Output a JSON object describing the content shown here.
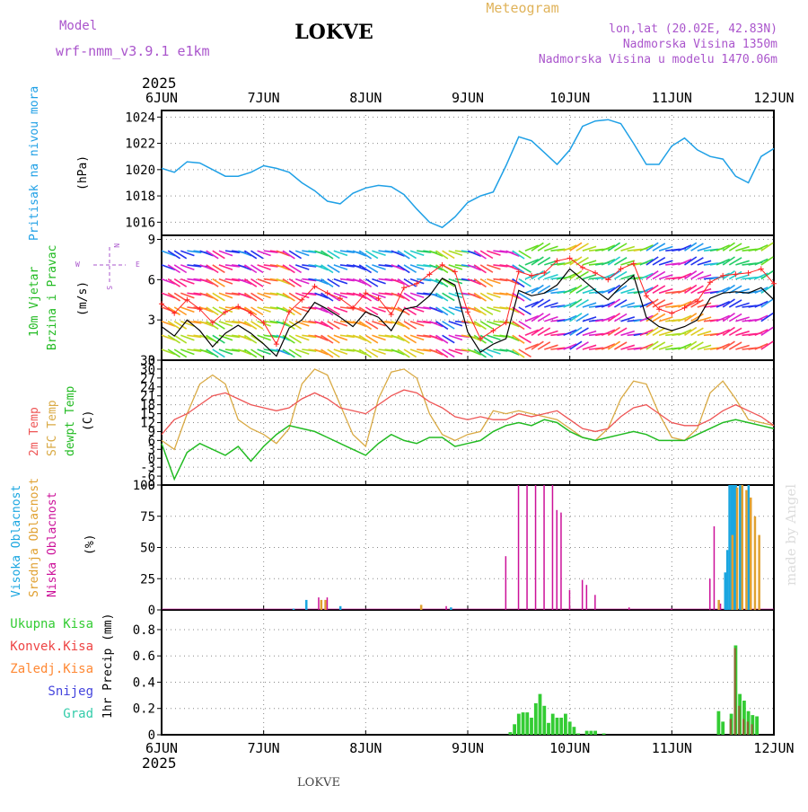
{
  "header": {
    "model_label": "Model",
    "model_name": "wrf-nmm_v3.9.1  e1km",
    "station": "LOKVE",
    "meteogram": "Meteogram",
    "lonlat": "lon,lat (20.02E, 42.83N)",
    "altitude": "Nadmorska Visina 1350m",
    "model_altitude": "Nadmorska Visina u modelu 1470.06m",
    "year": "2025",
    "footer_station": "LOKVE",
    "credit": "made by Angel"
  },
  "colors": {
    "pressure": "#1fa0e6",
    "temp2m": "#ee5555",
    "sfc_temp": "#d9aa44",
    "dewpoint": "#22bb22",
    "high_cloud": "#1aa6e0",
    "mid_cloud": "#e0a030",
    "low_cloud": "#cc1199",
    "total_precip": "#33cc33",
    "convective": "#ee4444",
    "freezing": "#ff8833",
    "snow": "#4444dd",
    "hail": "#33ccaa",
    "wind_speed": "#000000",
    "gust": "#ff2222"
  },
  "chart_data": [
    {
      "type": "line",
      "panel": "pressure",
      "ylabel_left": "Pritisak na nivou mora",
      "unit": "(hPa)",
      "ylim": [
        1015,
        1024.5
      ],
      "yticks": [
        "1016",
        "1018",
        "1020",
        "1022",
        "1024"
      ],
      "grid": true,
      "x_ticks": [
        "6JUN",
        "7JUN",
        "8JUN",
        "9JUN",
        "10JUN",
        "11JUN",
        "12JUN"
      ],
      "x": [
        0,
        3,
        6,
        9,
        12,
        15,
        18,
        21,
        24,
        27,
        30,
        33,
        36,
        39,
        42,
        45,
        48,
        51,
        54,
        57,
        60,
        63,
        66,
        69,
        72,
        75,
        78,
        81,
        84,
        87,
        90,
        93,
        96,
        99,
        102,
        105,
        108,
        111,
        114,
        117,
        120,
        123,
        126,
        129,
        132,
        135,
        138,
        141,
        144
      ],
      "series": [
        {
          "values": [
            1020.1,
            1019.8,
            1020.6,
            1020.5,
            1020.0,
            1019.5,
            1019.5,
            1019.8,
            1020.3,
            1020.1,
            1019.8,
            1019.0,
            1018.4,
            1017.6,
            1017.4,
            1018.2,
            1018.6,
            1018.8,
            1018.7,
            1018.1,
            1017.0,
            1016.0,
            1015.6,
            1016.4,
            1017.5,
            1018.0,
            1018.3,
            1020.3,
            1022.5,
            1022.2,
            1021.3,
            1020.4,
            1021.5,
            1023.3,
            1023.7,
            1023.8,
            1023.5,
            1022.0,
            1020.4,
            1020.4,
            1021.8,
            1022.4,
            1021.5,
            1021.0,
            1020.8,
            1019.5,
            1019.0,
            1021.0,
            1021.6
          ]
        }
      ]
    },
    {
      "type": "line",
      "panel": "wind",
      "ylabel_left": [
        "10m Vjetar",
        "Brzina i Pravac"
      ],
      "unit": "(m/s)",
      "compass": [
        "N",
        "W",
        "E",
        "S"
      ],
      "ylim": [
        0,
        9.3
      ],
      "yticks": [
        "0",
        "3",
        "6",
        "9"
      ],
      "grid": true,
      "x": [
        0,
        3,
        6,
        9,
        12,
        15,
        18,
        21,
        24,
        27,
        30,
        33,
        36,
        39,
        42,
        45,
        48,
        51,
        54,
        57,
        60,
        63,
        66,
        69,
        72,
        75,
        78,
        81,
        84,
        87,
        90,
        93,
        96,
        99,
        102,
        105,
        108,
        111,
        114,
        117,
        120,
        123,
        126,
        129,
        132,
        135,
        138,
        141,
        144
      ],
      "series": [
        {
          "name": "speed",
          "values": [
            2.5,
            1.8,
            3.0,
            2.2,
            1.0,
            2.0,
            2.6,
            2.0,
            1.2,
            0.3,
            2.4,
            3.0,
            4.3,
            3.8,
            3.2,
            2.5,
            3.6,
            3.2,
            2.2,
            3.8,
            4.0,
            4.8,
            6.1,
            5.6,
            2.1,
            0.6,
            1.2,
            1.6,
            5.2,
            4.8,
            5.0,
            5.6,
            6.8,
            6.0,
            5.2,
            4.5,
            5.5,
            6.3,
            3.2,
            2.5,
            2.2,
            2.5,
            3.0,
            4.6,
            5.0,
            5.1,
            5.0,
            5.4,
            4.5
          ]
        },
        {
          "name": "gust",
          "values": [
            4.2,
            3.5,
            4.5,
            3.8,
            2.8,
            3.6,
            4.0,
            3.5,
            2.8,
            1.2,
            3.6,
            4.5,
            5.5,
            5.0,
            4.6,
            3.9,
            5.0,
            4.6,
            3.4,
            5.4,
            5.7,
            6.4,
            7.1,
            6.6,
            3.6,
            1.6,
            2.2,
            2.8,
            6.6,
            6.3,
            6.5,
            7.4,
            7.6,
            6.9,
            6.5,
            6.0,
            6.8,
            7.2,
            4.8,
            3.8,
            3.5,
            3.9,
            4.4,
            5.8,
            6.3,
            6.4,
            6.5,
            6.8,
            5.7
          ]
        }
      ]
    },
    {
      "type": "line",
      "panel": "temperature",
      "ylabel_left": [
        "2m Temp",
        "SFC Temp",
        "dewpt Temp"
      ],
      "unit": "(C)",
      "ylim": [
        -9,
        33
      ],
      "yticks": [
        "-9",
        "-6",
        "-3",
        "0",
        "3",
        "6",
        "9",
        "12",
        "15",
        "18",
        "21",
        "24",
        "27",
        "30",
        "33"
      ],
      "grid": true,
      "x": [
        0,
        3,
        6,
        9,
        12,
        15,
        18,
        21,
        24,
        27,
        30,
        33,
        36,
        39,
        42,
        45,
        48,
        51,
        54,
        57,
        60,
        63,
        66,
        69,
        72,
        75,
        78,
        81,
        84,
        87,
        90,
        93,
        96,
        99,
        102,
        105,
        108,
        111,
        114,
        117,
        120,
        123,
        126,
        129,
        132,
        135,
        138,
        141,
        144
      ],
      "series": [
        {
          "name": "2m Temp",
          "values": [
            8,
            13,
            15,
            18,
            21,
            22,
            20,
            18,
            17,
            16,
            17,
            20,
            22,
            20,
            17,
            16,
            15,
            18,
            21,
            23,
            22,
            19,
            17,
            14,
            13,
            14,
            13,
            13,
            15,
            14,
            15,
            16,
            13,
            10,
            9,
            10,
            14,
            17,
            18,
            15,
            12,
            11,
            11,
            13,
            16,
            18,
            16,
            14,
            11
          ]
        },
        {
          "name": "SFC Temp",
          "values": [
            6,
            3,
            15,
            25,
            28,
            25,
            13,
            10,
            8,
            5,
            10,
            25,
            30,
            28,
            18,
            8,
            4,
            20,
            29,
            30,
            27,
            15,
            8,
            6,
            8,
            9,
            16,
            15,
            16,
            15,
            14,
            13,
            10,
            7,
            6,
            10,
            20,
            26,
            25,
            15,
            7,
            6,
            10,
            22,
            26,
            20,
            13,
            12,
            11
          ]
        },
        {
          "name": "dewpt Temp",
          "values": [
            5,
            -7,
            2,
            5,
            3,
            1,
            4,
            -1,
            4,
            8,
            11,
            10,
            9,
            7,
            5,
            3,
            1,
            5,
            8,
            6,
            5,
            7,
            7,
            4,
            5,
            6,
            9,
            11,
            12,
            11,
            13,
            12,
            9,
            7,
            6,
            7,
            8,
            9,
            8,
            6,
            6,
            6,
            8,
            10,
            12,
            13,
            12,
            11,
            10
          ]
        }
      ]
    },
    {
      "type": "bar",
      "panel": "cloud",
      "ylabel_left": [
        "Visoka Oblacnost",
        "Srednja Oblacnost",
        "Niska Oblacnost"
      ],
      "unit": "(%)",
      "ylim": [
        0,
        100
      ],
      "yticks": [
        "0",
        "25",
        "50",
        "75",
        "100"
      ],
      "grid": true,
      "series": [
        {
          "name": "Visoka Oblacnost",
          "points": [
            [
              31,
              1
            ],
            [
              34,
              8
            ],
            [
              42,
              3
            ],
            [
              68,
              2
            ],
            [
              132.5,
              30
            ],
            [
              133,
              48
            ],
            [
              133.5,
              100
            ],
            [
              134,
              100
            ],
            [
              134.5,
              100
            ],
            [
              135,
              100
            ],
            [
              136,
              100
            ],
            [
              138,
              100
            ]
          ]
        },
        {
          "name": "Srednja Oblacnost",
          "points": [
            [
              37.5,
              8
            ],
            [
              38.5,
              8
            ],
            [
              61,
              4
            ],
            [
              131,
              8
            ],
            [
              134.2,
              60
            ],
            [
              135.3,
              98
            ],
            [
              136.5,
              100
            ],
            [
              137.5,
              96
            ],
            [
              138.5,
              90
            ],
            [
              139.5,
              75
            ],
            [
              140.5,
              60
            ]
          ]
        },
        {
          "name": "Niska Oblacnost",
          "points": [
            [
              37,
              10
            ],
            [
              39,
              10
            ],
            [
              67,
              3
            ],
            [
              81,
              43
            ],
            [
              84,
              100
            ],
            [
              86,
              100
            ],
            [
              88,
              100
            ],
            [
              90,
              100
            ],
            [
              92,
              100
            ],
            [
              93,
              80
            ],
            [
              94,
              78
            ],
            [
              96,
              16
            ],
            [
              99,
              24
            ],
            [
              100,
              20
            ],
            [
              102,
              12
            ],
            [
              110,
              2
            ],
            [
              120,
              1
            ],
            [
              129,
              25
            ],
            [
              130,
              67
            ],
            [
              131.5,
              5
            ]
          ]
        }
      ]
    },
    {
      "type": "bar",
      "panel": "precipitation",
      "ylabel_left": [
        "Ukupna Kisa",
        "Konvek.Kisa",
        "Zaledj.Kisa",
        "Snijeg",
        "Grad"
      ],
      "unit": "1hr Precip (mm)",
      "ylim": [
        0,
        0.95
      ],
      "yticks": [
        "0",
        "0.2",
        "0.4",
        "0.6",
        "0.8"
      ],
      "grid": true,
      "x_ticks": [
        "6JUN",
        "7JUN",
        "8JUN",
        "9JUN",
        "10JUN",
        "11JUN",
        "12JUN"
      ],
      "series": [
        {
          "name": "Ukupna Kisa",
          "points": [
            [
              82,
              0.02
            ],
            [
              83,
              0.08
            ],
            [
              84,
              0.16
            ],
            [
              85,
              0.17
            ],
            [
              86,
              0.17
            ],
            [
              87,
              0.13
            ],
            [
              88,
              0.24
            ],
            [
              89,
              0.31
            ],
            [
              90,
              0.22
            ],
            [
              91,
              0.09
            ],
            [
              92,
              0.16
            ],
            [
              93,
              0.13
            ],
            [
              94,
              0.13
            ],
            [
              95,
              0.16
            ],
            [
              96,
              0.1
            ],
            [
              97,
              0.06
            ],
            [
              98,
              0.01
            ],
            [
              100,
              0.03
            ],
            [
              101,
              0.03
            ],
            [
              102,
              0.03
            ],
            [
              104,
              0.01
            ],
            [
              131,
              0.18
            ],
            [
              132,
              0.1
            ],
            [
              134,
              0.16
            ],
            [
              135,
              0.68
            ],
            [
              136,
              0.31
            ],
            [
              137,
              0.26
            ],
            [
              138,
              0.18
            ],
            [
              139,
              0.15
            ],
            [
              140,
              0.14
            ]
          ]
        },
        {
          "name": "Konvek.Kisa",
          "points": [
            [
              134,
              0.12
            ],
            [
              135,
              0.66
            ],
            [
              136,
              0.22
            ],
            [
              137,
              0.12
            ],
            [
              138,
              0.1
            ],
            [
              139,
              0.08
            ]
          ]
        }
      ]
    }
  ]
}
